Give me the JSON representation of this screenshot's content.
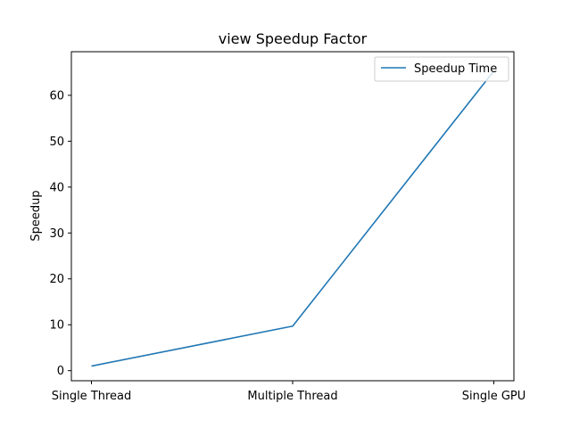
{
  "chart_data": {
    "type": "line",
    "title": "view Speedup Factor",
    "xlabel": "",
    "ylabel": "Speedup",
    "categories": [
      "Single Thread",
      "Multiple Thread",
      "Single GPU"
    ],
    "series": [
      {
        "name": "Speedup Time",
        "values": [
          1.0,
          9.7,
          65.3
        ],
        "color": "#1f77b4"
      }
    ],
    "yticks": [
      0,
      10,
      20,
      30,
      40,
      50,
      60
    ],
    "ylim": [
      -2.2,
      69.5
    ],
    "legend": {
      "location": "top-right"
    },
    "grid": false
  }
}
